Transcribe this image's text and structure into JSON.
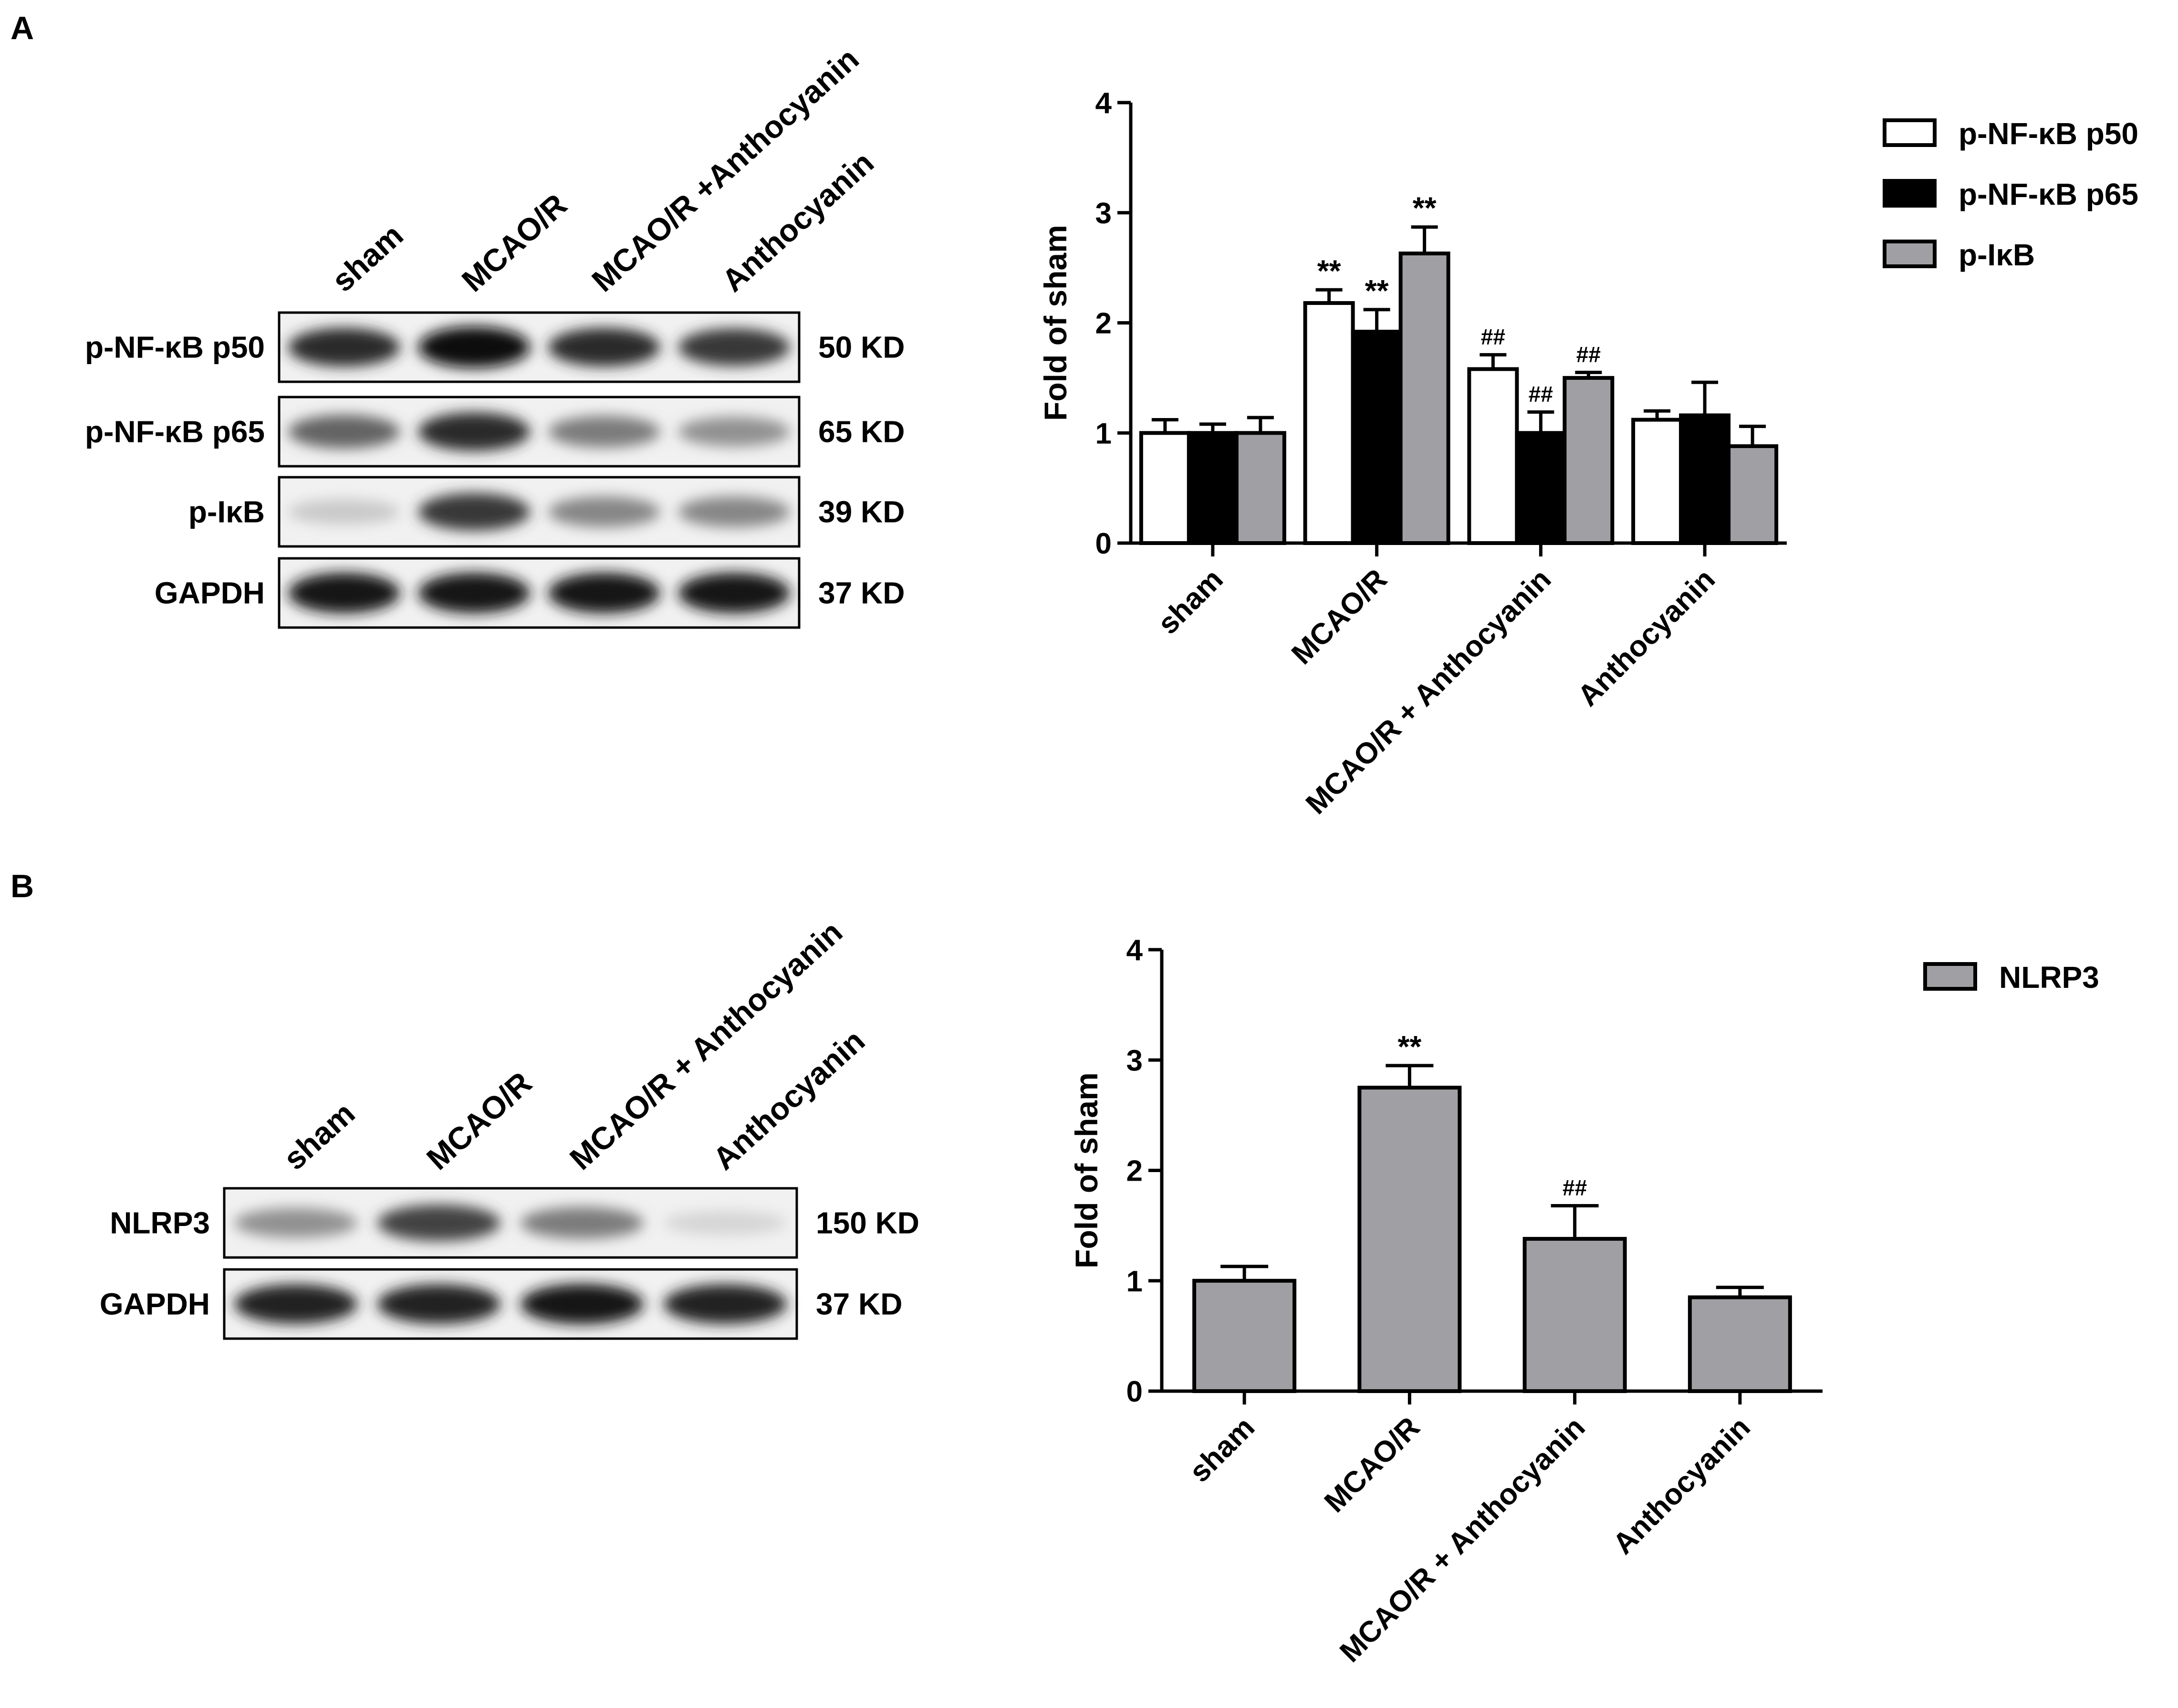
{
  "panels": {
    "a": {
      "letter": "A",
      "blot": {
        "lanes": [
          "sham",
          "MCAO/R",
          "MCAO/R +Anthocyanin",
          "Anthocyanin"
        ],
        "rows": [
          {
            "label": "p-NF-κB p50",
            "size": "50 KD",
            "intensity": [
              0.85,
              1.0,
              0.85,
              0.8
            ]
          },
          {
            "label": "p-NF-κB p65",
            "size": "65 KD",
            "intensity": [
              0.6,
              0.85,
              0.5,
              0.4
            ]
          },
          {
            "label": "p-IκB",
            "size": "39 KD",
            "intensity": [
              0.15,
              0.8,
              0.45,
              0.45
            ]
          },
          {
            "label": "GAPDH",
            "size": "37 KD",
            "intensity": [
              0.95,
              0.95,
              0.95,
              0.95
            ]
          }
        ]
      }
    },
    "b": {
      "letter": "B",
      "blot": {
        "lanes": [
          "sham",
          "MCAO/R",
          "MCAO/R + Anthocyanin",
          "Anthocyanin"
        ],
        "rows": [
          {
            "label": "NLRP3",
            "size": "150 KD",
            "intensity": [
              0.4,
              0.75,
              0.5,
              0.1
            ]
          },
          {
            "label": "GAPDH",
            "size": "37 KD",
            "intensity": [
              0.9,
              0.9,
              0.95,
              0.9
            ]
          }
        ]
      }
    }
  },
  "chart_data": [
    {
      "type": "bar",
      "title": "",
      "xlabel": "",
      "ylabel": "Fold of sham",
      "ylim": [
        0,
        4
      ],
      "yticks": [
        0,
        1,
        2,
        3,
        4
      ],
      "categories": [
        "sham",
        "MCAO/R",
        "MCAO/R + Anthocyanin",
        "Anthocyanin"
      ],
      "legend_position": "right",
      "series": [
        {
          "name": "p-NF-κB p50",
          "color": "#ffffff",
          "values": [
            1.0,
            2.18,
            1.58,
            1.12
          ],
          "errors": [
            0.12,
            0.12,
            0.13,
            0.08
          ],
          "annotations": [
            "",
            "**",
            "##",
            ""
          ]
        },
        {
          "name": "p-NF-κB p65",
          "color": "#000000",
          "values": [
            1.0,
            1.92,
            1.0,
            1.16
          ],
          "errors": [
            0.08,
            0.2,
            0.19,
            0.3
          ],
          "annotations": [
            "",
            "**",
            "##",
            ""
          ]
        },
        {
          "name": "p-IκB",
          "color": "#a0a0a4",
          "values": [
            1.0,
            2.63,
            1.5,
            0.88
          ],
          "errors": [
            0.14,
            0.24,
            0.05,
            0.18
          ],
          "annotations": [
            "",
            "**",
            "##",
            ""
          ]
        }
      ]
    },
    {
      "type": "bar",
      "title": "",
      "xlabel": "",
      "ylabel": "Fold of sham",
      "ylim": [
        0,
        4
      ],
      "yticks": [
        0,
        1,
        2,
        3,
        4
      ],
      "categories": [
        "sham",
        "MCAO/R",
        "MCAO/R + Anthocyanin",
        "Anthocyanin"
      ],
      "legend_position": "right",
      "series": [
        {
          "name": "NLRP3",
          "color": "#a0a0a4",
          "values": [
            1.0,
            2.75,
            1.38,
            0.85
          ],
          "errors": [
            0.13,
            0.2,
            0.3,
            0.09
          ],
          "annotations": [
            "",
            "**",
            "##",
            ""
          ]
        }
      ]
    }
  ]
}
